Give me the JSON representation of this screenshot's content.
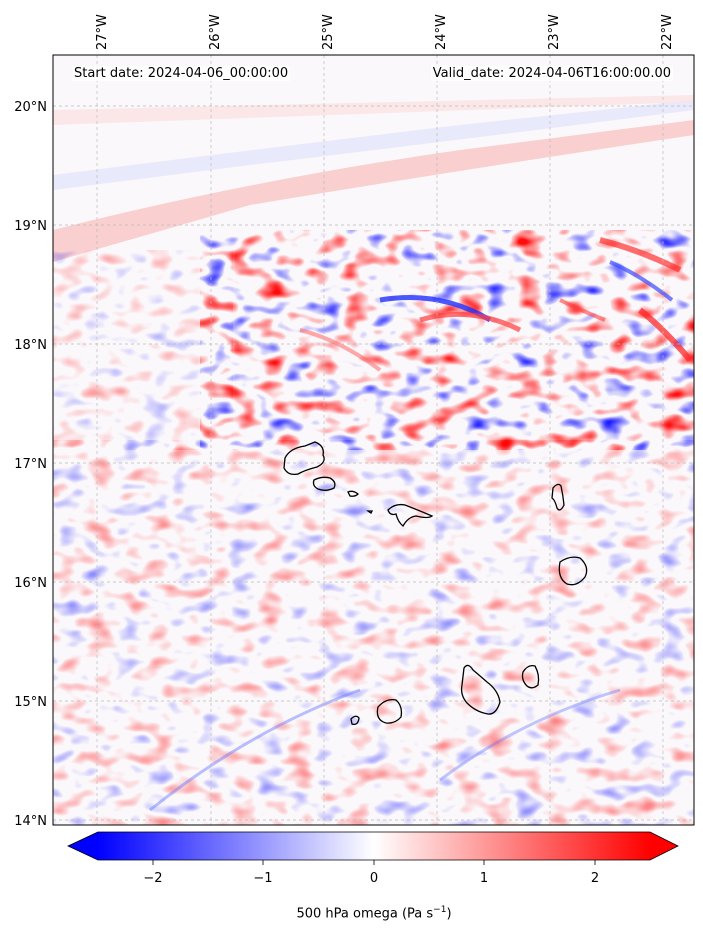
{
  "map": {
    "start_date_text": "Start date: 2024-04-06_00:00:00",
    "valid_date_text": "Valid_date: 2024-04-06T16:00:00.00",
    "lon_ticks": [
      "27°W",
      "26°W",
      "25°W",
      "24°W",
      "23°W",
      "22°W"
    ],
    "lat_ticks": [
      "20°N",
      "19°N",
      "18°N",
      "17°N",
      "16°N",
      "15°N",
      "14°N"
    ],
    "extent": {
      "lon_min": -27.4,
      "lon_max": -21.7,
      "lat_min": 13.95,
      "lat_max": 20.4
    },
    "islands": [
      "Santo Antão",
      "São Vicente",
      "Santa Luzia",
      "Raso",
      "São Nicolau",
      "Sal",
      "Boa Vista",
      "Maio",
      "Santiago",
      "Fogo",
      "Brava"
    ]
  },
  "colorbar": {
    "title_main": "500 hPa omega (Pa s",
    "title_exp": "−1",
    "title_close": ")",
    "ticks": [
      "−2",
      "−1",
      "0",
      "1",
      "2"
    ],
    "range": [
      -2.5,
      2.5
    ],
    "cmap": "bwr",
    "low_color": "#0000ff",
    "mid_color": "#ffffff",
    "high_color": "#ff0000"
  }
}
